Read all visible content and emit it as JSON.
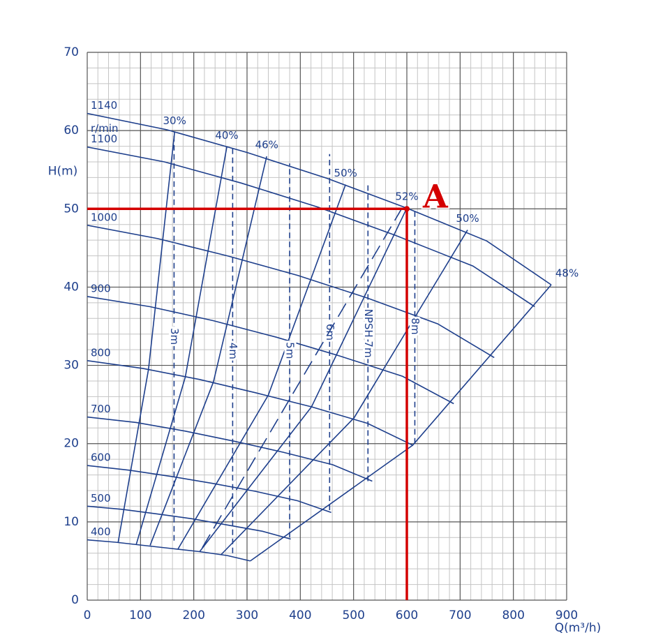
{
  "chart_data": {
    "type": "line",
    "x_label": "Q(m³/h)",
    "y_label": "H(m)",
    "xlim": [
      0,
      900
    ],
    "ylim": [
      0,
      70
    ],
    "xticks": [
      0,
      100,
      200,
      300,
      400,
      500,
      600,
      700,
      800,
      900
    ],
    "yticks": [
      0,
      10,
      20,
      30,
      40,
      50,
      60,
      70
    ],
    "grid": true,
    "color": "#1e3f8c",
    "speed_unit": "r/min",
    "series": [
      {
        "name": "1140",
        "x": [
          0,
          150,
          300,
          450,
          600,
          750,
          871
        ],
        "y": [
          62.2,
          60.1,
          57.2,
          53.9,
          50.1,
          45.9,
          40.3
        ]
      },
      {
        "name": "1100",
        "x": [
          0,
          145,
          289,
          434,
          579,
          724,
          840
        ],
        "y": [
          57.9,
          56.0,
          53.3,
          50.2,
          46.6,
          42.7,
          37.5
        ]
      },
      {
        "name": "1000",
        "x": [
          0,
          132,
          263,
          395,
          526,
          658,
          764
        ],
        "y": [
          47.9,
          46.2,
          44.0,
          41.5,
          38.6,
          35.3,
          31.0
        ]
      },
      {
        "name": "900",
        "x": [
          0,
          118,
          237,
          355,
          474,
          592,
          688
        ],
        "y": [
          38.8,
          37.5,
          35.7,
          33.6,
          31.2,
          28.6,
          25.1
        ]
      },
      {
        "name": "800",
        "x": [
          0,
          105,
          211,
          316,
          421,
          526,
          611
        ],
        "y": [
          30.6,
          29.6,
          28.2,
          26.5,
          24.7,
          22.6,
          19.8
        ]
      },
      {
        "name": "700",
        "x": [
          0,
          92,
          184,
          276,
          368,
          461,
          535
        ],
        "y": [
          23.4,
          22.7,
          21.6,
          20.3,
          18.9,
          17.3,
          15.2
        ]
      },
      {
        "name": "600",
        "x": [
          0,
          79,
          158,
          237,
          316,
          395,
          458
        ],
        "y": [
          17.2,
          16.6,
          15.8,
          14.9,
          13.9,
          12.7,
          11.2
        ]
      },
      {
        "name": "500",
        "x": [
          0,
          66,
          132,
          197,
          263,
          329,
          382
        ],
        "y": [
          12.0,
          11.6,
          11.0,
          10.4,
          9.6,
          8.8,
          7.8
        ]
      },
      {
        "name": "400",
        "x": [
          0,
          53,
          105,
          158,
          211,
          263,
          306
        ],
        "y": [
          7.7,
          7.4,
          7.0,
          6.6,
          6.2,
          5.7,
          5.0
        ]
      }
    ],
    "efficiency": [
      {
        "label": "30%",
        "x": [
          164,
          115,
          58
        ],
        "y": [
          59.8,
          29.5,
          7.4
        ]
      },
      {
        "label": "40%",
        "x": [
          262,
          184,
          92
        ],
        "y": [
          57.9,
          28.5,
          7.1
        ]
      },
      {
        "label": "46%",
        "x": [
          337,
          237,
          118
        ],
        "y": [
          56.7,
          27.9,
          7.0
        ]
      },
      {
        "label": "50%",
        "x": [
          485,
          340,
          170
        ],
        "y": [
          53.1,
          26.2,
          6.5
        ]
      },
      {
        "label": "52%",
        "x": [
          600,
          421,
          211
        ],
        "y": [
          50.1,
          24.7,
          6.2
        ]
      },
      {
        "label": "50%",
        "x": [
          714,
          501,
          251
        ],
        "y": [
          47.3,
          23.3,
          5.8
        ]
      },
      {
        "label": "48%",
        "x": [
          871,
          611,
          306
        ],
        "y": [
          40.3,
          19.8,
          5.0
        ]
      }
    ],
    "npsh": [
      {
        "label": "3m",
        "q": 163,
        "h": [
          7.6,
          59.8
        ]
      },
      {
        "label": "4m",
        "q": 273,
        "h": [
          6.0,
          57.7
        ]
      },
      {
        "label": "5m",
        "q": 380,
        "h": [
          8.0,
          55.8
        ]
      },
      {
        "label": "6m",
        "q": 455,
        "h": [
          11.5,
          57.0
        ]
      },
      {
        "label": "NPSH 7m",
        "q": 527,
        "h": [
          15.2,
          53.0
        ]
      },
      {
        "label": "8m",
        "q": 615,
        "h": [
          20.0,
          50.0
        ]
      }
    ],
    "dashed": {
      "x": [
        216,
        590
      ],
      "y": [
        6.7,
        50
      ]
    },
    "operating_point": {
      "label": "A",
      "q": 600,
      "h": 50,
      "color": "#d40000"
    }
  }
}
